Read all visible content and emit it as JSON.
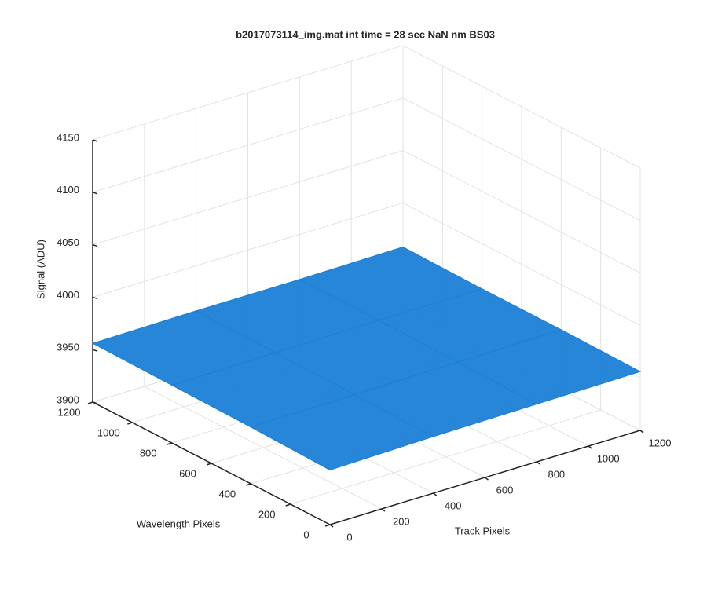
{
  "chart_data": {
    "type": "surface",
    "title": "b2017073114_img.mat int time = 28 sec  NaN nm BS03",
    "xlabel": "Track Pixels",
    "ylabel": "Wavelength Pixels",
    "zlabel": "Signal (ADU)",
    "x": [
      0,
      400,
      800,
      1200
    ],
    "y": [
      0,
      400,
      800,
      1200
    ],
    "z": [
      [
        3952,
        3954,
        3955,
        3956
      ],
      [
        3954,
        3955,
        3956,
        3957
      ],
      [
        3955,
        3956,
        3957,
        3957
      ],
      [
        3956,
        3957,
        3957,
        3958
      ]
    ],
    "color": "#1b7fd6",
    "xlim": [
      0,
      1200
    ],
    "ylim": [
      0,
      1200
    ],
    "zlim": [
      3900,
      4150
    ],
    "xticks": [
      0,
      200,
      400,
      600,
      800,
      1000,
      1200
    ],
    "yticks": [
      0,
      200,
      400,
      600,
      800,
      1000,
      1200
    ],
    "zticks": [
      3900,
      3950,
      4000,
      4050,
      4100,
      4150
    ],
    "grid": true
  }
}
